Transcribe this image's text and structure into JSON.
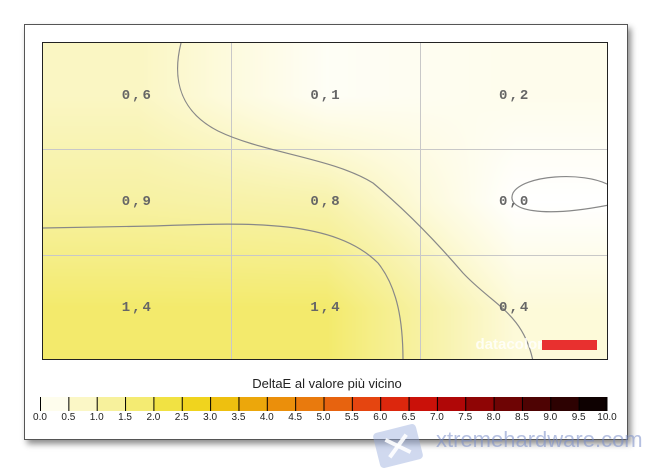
{
  "chart_data": {
    "type": "heatmap",
    "title": "DeltaE al valore più vicino",
    "rows": 3,
    "cols": 3,
    "values": [
      [
        0.6,
        0.1,
        0.2
      ],
      [
        0.9,
        0.8,
        0.0
      ],
      [
        1.4,
        1.4,
        0.4
      ]
    ],
    "labels": [
      [
        "0,6",
        "0,1",
        "0,2"
      ],
      [
        "0,9",
        "0,8",
        "0,0"
      ],
      [
        "1,4",
        "1,4",
        "0,4"
      ]
    ],
    "grid": true,
    "colorbar": {
      "range": [
        0,
        10
      ],
      "ticks": [
        "0.0",
        "0.5",
        "1.0",
        "1.5",
        "2.0",
        "2.5",
        "3.0",
        "3.5",
        "4.0",
        "4.5",
        "5.0",
        "5.5",
        "6.0",
        "6.5",
        "7.0",
        "7.5",
        "8.0",
        "8.5",
        "9.0",
        "9.5",
        "10.0"
      ],
      "colors": [
        "#ffffff",
        "#fdfadb",
        "#f8f3b0",
        "#f5ee88",
        "#f2e85c",
        "#f0dc2a",
        "#efcc12",
        "#edb40c",
        "#eb9a0a",
        "#ea840c",
        "#e8700e",
        "#e65510",
        "#e33410",
        "#d41a0a",
        "#c00808",
        "#a00606",
        "#7e0404",
        "#5e0303",
        "#3e0202",
        "#1c0101",
        "#000000"
      ]
    }
  },
  "logo": "datacolor",
  "watermark": "xtremehardware.com"
}
